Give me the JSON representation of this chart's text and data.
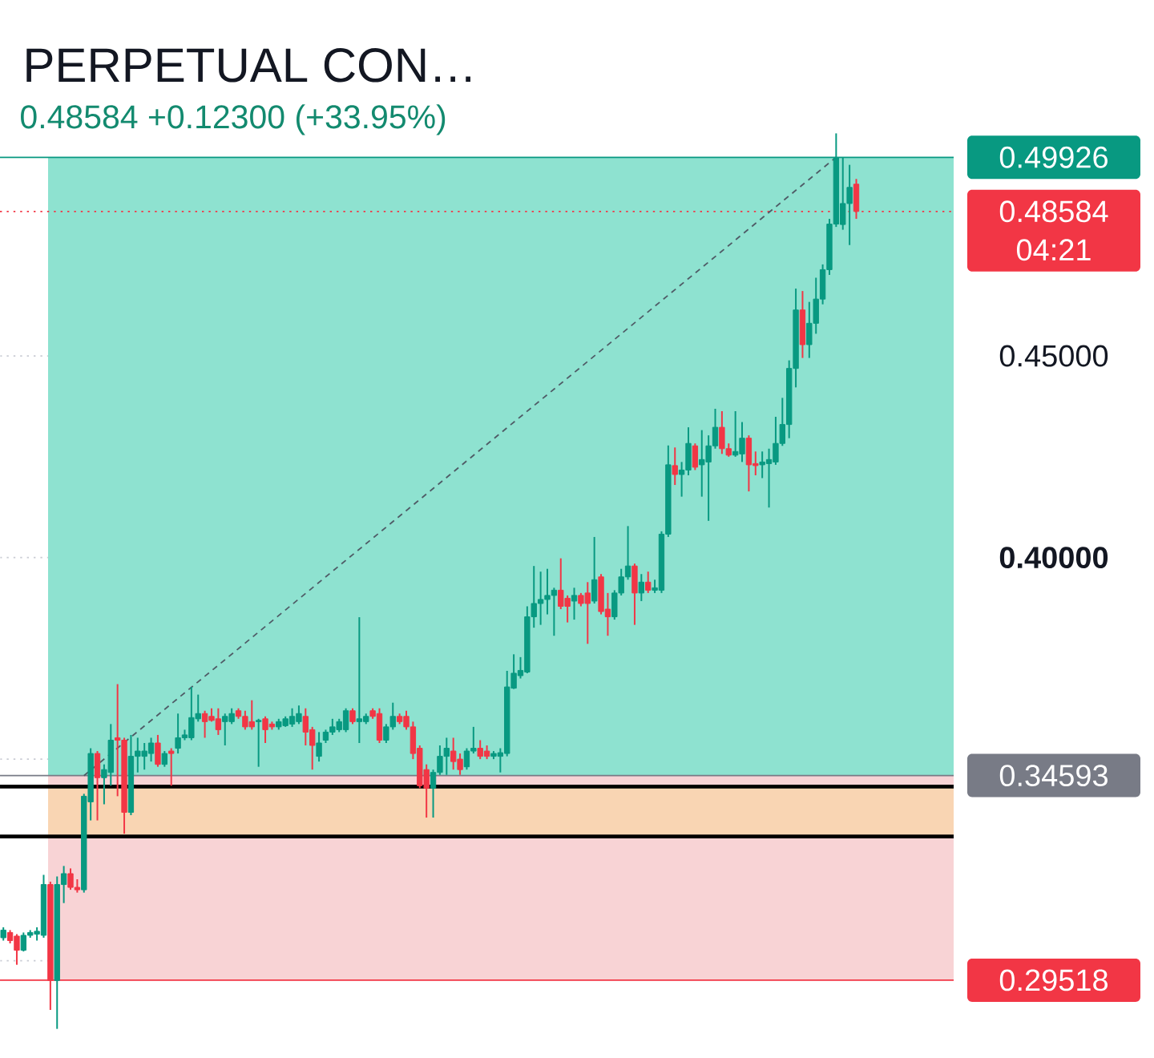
{
  "chart_data": {
    "type": "candlestick",
    "title": "PERPETUAL CON…",
    "subtitle": "0.48584 +0.12300 (+33.95%)",
    "categories": [
      null,
      null,
      null,
      null,
      null,
      null,
      null,
      null,
      null,
      null,
      null,
      null,
      null,
      null,
      null,
      null,
      null,
      null,
      null,
      null,
      null,
      null,
      null,
      null,
      null,
      null,
      null,
      null,
      null,
      null,
      null,
      null,
      null,
      null,
      null,
      null,
      null,
      null,
      null,
      null,
      null,
      null,
      null,
      null,
      null,
      null,
      null,
      null,
      null,
      null,
      null,
      null,
      null,
      null,
      null,
      null,
      null,
      null,
      null,
      null,
      null,
      null,
      null,
      null,
      null,
      null,
      null,
      null,
      null,
      null,
      null,
      null,
      null,
      null,
      null,
      null,
      null,
      null,
      null,
      null,
      null,
      null,
      null,
      null,
      null,
      null,
      null,
      null,
      null,
      null,
      null,
      null,
      null,
      null,
      null,
      null,
      null,
      null,
      null,
      null,
      null,
      null,
      null,
      null,
      null,
      null,
      null,
      null,
      null,
      null,
      null,
      null,
      null,
      null,
      null,
      null,
      null,
      null,
      null,
      null,
      null,
      null,
      null,
      null,
      null,
      null,
      null,
      null
    ],
    "ohlc": [
      [
        0.3057,
        0.3083,
        0.305,
        0.3076
      ],
      [
        0.307,
        0.3076,
        0.3043,
        0.305
      ],
      [
        0.3061,
        0.3066,
        0.299,
        0.3026
      ],
      [
        0.3026,
        0.307,
        0.3023,
        0.3063
      ],
      [
        0.3063,
        0.3076,
        0.3057,
        0.307
      ],
      [
        0.3066,
        0.3083,
        0.305,
        0.3073
      ],
      [
        0.3063,
        0.3213,
        0.3057,
        0.3189
      ],
      [
        0.3189,
        0.3196,
        0.2878,
        0.2951
      ],
      [
        0.2951,
        0.3209,
        0.2831,
        0.3189
      ],
      [
        0.3189,
        0.3235,
        0.3143,
        0.3216
      ],
      [
        0.3216,
        0.3229,
        0.3176,
        0.3182
      ],
      [
        0.3182,
        0.3202,
        0.3169,
        0.3176
      ],
      [
        0.3176,
        0.3414,
        0.3169,
        0.3408
      ],
      [
        0.3394,
        0.3527,
        0.3348,
        0.3514
      ],
      [
        0.3514,
        0.352,
        0.3348,
        0.3454
      ],
      [
        0.3454,
        0.3487,
        0.3388,
        0.3474
      ],
      [
        0.3467,
        0.3587,
        0.3434,
        0.3547
      ],
      [
        0.3553,
        0.3686,
        0.3408,
        0.3547
      ],
      [
        0.3547,
        0.3553,
        0.3315,
        0.3368
      ],
      [
        0.3368,
        0.356,
        0.3361,
        0.3507
      ],
      [
        0.3507,
        0.3553,
        0.3467,
        0.352
      ],
      [
        0.3507,
        0.354,
        0.3474,
        0.352
      ],
      [
        0.3514,
        0.3553,
        0.3494,
        0.354
      ],
      [
        0.354,
        0.356,
        0.3481,
        0.3487
      ],
      [
        0.3487,
        0.352,
        0.3481,
        0.3514
      ],
      [
        0.352,
        0.3527,
        0.3434,
        0.3514
      ],
      [
        0.3527,
        0.3613,
        0.3514,
        0.3553
      ],
      [
        0.3553,
        0.3573,
        0.3547,
        0.356
      ],
      [
        0.3553,
        0.3679,
        0.3547,
        0.3603
      ],
      [
        0.36,
        0.366,
        0.3593,
        0.3613
      ],
      [
        0.3613,
        0.362,
        0.3553,
        0.3593
      ],
      [
        0.3606,
        0.3626,
        0.3593,
        0.3596
      ],
      [
        0.36,
        0.3626,
        0.356,
        0.3573
      ],
      [
        0.3593,
        0.3613,
        0.3534,
        0.3606
      ],
      [
        0.3593,
        0.3626,
        0.3587,
        0.3613
      ],
      [
        0.362,
        0.3626,
        0.36,
        0.3606
      ],
      [
        0.3606,
        0.362,
        0.3573,
        0.358
      ],
      [
        0.3593,
        0.3646,
        0.3573,
        0.358
      ],
      [
        0.3593,
        0.36,
        0.3481,
        0.3596
      ],
      [
        0.36,
        0.3606,
        0.354,
        0.3573
      ],
      [
        0.3587,
        0.3593,
        0.3573,
        0.358
      ],
      [
        0.358,
        0.36,
        0.3573,
        0.3593
      ],
      [
        0.3583,
        0.3606,
        0.358,
        0.36
      ],
      [
        0.3587,
        0.3626,
        0.358,
        0.3606
      ],
      [
        0.3593,
        0.3633,
        0.3587,
        0.3613
      ],
      [
        0.3606,
        0.3626,
        0.3534,
        0.3567
      ],
      [
        0.3573,
        0.358,
        0.3474,
        0.3534
      ],
      [
        0.3507,
        0.3567,
        0.3494,
        0.354
      ],
      [
        0.3547,
        0.3573,
        0.354,
        0.3567
      ],
      [
        0.3567,
        0.36,
        0.356,
        0.358
      ],
      [
        0.3573,
        0.36,
        0.3567,
        0.3593
      ],
      [
        0.3573,
        0.3626,
        0.3567,
        0.362
      ],
      [
        0.362,
        0.3626,
        0.3587,
        0.3593
      ],
      [
        0.3593,
        0.3852,
        0.354,
        0.36
      ],
      [
        0.3593,
        0.3613,
        0.3587,
        0.3606
      ],
      [
        0.362,
        0.3626,
        0.36,
        0.3606
      ],
      [
        0.3613,
        0.3626,
        0.354,
        0.3547
      ],
      [
        0.3547,
        0.3587,
        0.354,
        0.358
      ],
      [
        0.358,
        0.364,
        0.3573,
        0.3606
      ],
      [
        0.3606,
        0.3613,
        0.3587,
        0.3593
      ],
      [
        0.3606,
        0.362,
        0.3573,
        0.358
      ],
      [
        0.358,
        0.3593,
        0.35,
        0.3514
      ],
      [
        0.3527,
        0.3534,
        0.3428,
        0.3434
      ],
      [
        0.3474,
        0.3487,
        0.3355,
        0.3428
      ],
      [
        0.3428,
        0.3474,
        0.3355,
        0.3467
      ],
      [
        0.3467,
        0.3534,
        0.3461,
        0.3507
      ],
      [
        0.3507,
        0.3553,
        0.3461,
        0.3527
      ],
      [
        0.352,
        0.3553,
        0.3474,
        0.3494
      ],
      [
        0.35,
        0.3514,
        0.3461,
        0.3474
      ],
      [
        0.3481,
        0.3527,
        0.3474,
        0.352
      ],
      [
        0.352,
        0.358,
        0.3514,
        0.3527
      ],
      [
        0.3527,
        0.3547,
        0.35,
        0.3507
      ],
      [
        0.352,
        0.3534,
        0.35,
        0.3507
      ],
      [
        0.3507,
        0.352,
        0.35,
        0.3514
      ],
      [
        0.3507,
        0.3527,
        0.3467,
        0.3516
      ],
      [
        0.3514,
        0.3719,
        0.3507,
        0.3679
      ],
      [
        0.3676,
        0.376,
        0.3674,
        0.3713
      ],
      [
        0.3707,
        0.3753,
        0.37,
        0.372
      ],
      [
        0.3716,
        0.3879,
        0.3713,
        0.3853
      ],
      [
        0.3853,
        0.3979,
        0.3826,
        0.3886
      ],
      [
        0.3886,
        0.3965,
        0.3833,
        0.3896
      ],
      [
        0.3896,
        0.3972,
        0.3859,
        0.3906
      ],
      [
        0.3906,
        0.3925,
        0.3806,
        0.3919
      ],
      [
        0.3919,
        0.3998,
        0.3872,
        0.3879
      ],
      [
        0.3899,
        0.3906,
        0.3839,
        0.3879
      ],
      [
        0.3892,
        0.3925,
        0.3846,
        0.3906
      ],
      [
        0.3906,
        0.3912,
        0.3879,
        0.3886
      ],
      [
        0.3912,
        0.3939,
        0.3786,
        0.3886
      ],
      [
        0.3892,
        0.4051,
        0.3886,
        0.3945
      ],
      [
        0.3952,
        0.3959,
        0.3859,
        0.3866
      ],
      [
        0.3872,
        0.3912,
        0.3806,
        0.3853
      ],
      [
        0.3853,
        0.3919,
        0.3846,
        0.3912
      ],
      [
        0.3912,
        0.3972,
        0.3906,
        0.3952
      ],
      [
        0.3952,
        0.4078,
        0.3945,
        0.3979
      ],
      [
        0.3979,
        0.3985,
        0.3833,
        0.3912
      ],
      [
        0.3912,
        0.3959,
        0.3892,
        0.3939
      ],
      [
        0.3939,
        0.3965,
        0.3912,
        0.3919
      ],
      [
        0.3919,
        0.3945,
        0.3912,
        0.3925
      ],
      [
        0.3919,
        0.4065,
        0.3912,
        0.4058
      ],
      [
        0.4058,
        0.4278,
        0.4051,
        0.423
      ],
      [
        0.4228,
        0.4273,
        0.418,
        0.4206
      ],
      [
        0.4206,
        0.4237,
        0.4151,
        0.4217
      ],
      [
        0.4217,
        0.4323,
        0.4204,
        0.4283
      ],
      [
        0.4277,
        0.4283,
        0.4217,
        0.4224
      ],
      [
        0.423,
        0.4316,
        0.4151,
        0.4243
      ],
      [
        0.4237,
        0.4303,
        0.4091,
        0.4277
      ],
      [
        0.4277,
        0.4369,
        0.427,
        0.4323
      ],
      [
        0.4323,
        0.4363,
        0.4257,
        0.427
      ],
      [
        0.427,
        0.4283,
        0.425,
        0.4254
      ],
      [
        0.4254,
        0.4363,
        0.425,
        0.4263
      ],
      [
        0.4257,
        0.4336,
        0.4237,
        0.4296
      ],
      [
        0.4296,
        0.4303,
        0.4164,
        0.423
      ],
      [
        0.4233,
        0.4263,
        0.4204,
        0.4228
      ],
      [
        0.423,
        0.4263,
        0.4197,
        0.4237
      ],
      [
        0.4233,
        0.427,
        0.4124,
        0.4243
      ],
      [
        0.4237,
        0.4349,
        0.423,
        0.4283
      ],
      [
        0.4283,
        0.4396,
        0.4277,
        0.433
      ],
      [
        0.433,
        0.4489,
        0.4296,
        0.4469
      ],
      [
        0.4469,
        0.4667,
        0.4422,
        0.4614
      ],
      [
        0.4614,
        0.4661,
        0.4495,
        0.4528
      ],
      [
        0.4528,
        0.4634,
        0.4495,
        0.4581
      ],
      [
        0.4581,
        0.4694,
        0.4555,
        0.4641
      ],
      [
        0.4641,
        0.4727,
        0.4628,
        0.4714
      ],
      [
        0.4714,
        0.484,
        0.4701,
        0.4827
      ],
      [
        0.4827,
        0.5052,
        0.482,
        0.4992
      ],
      [
        0.4826,
        0.4992,
        0.4813,
        0.4878
      ],
      [
        0.4878,
        0.4974,
        0.4775,
        0.4918
      ],
      [
        0.4926,
        0.4939,
        0.484,
        0.48584
      ]
    ],
    "series": [
      {
        "type": "line",
        "color": "#4f5b66",
        "line_style": "dashed",
        "values": [
          null,
          null,
          null,
          null,
          null,
          null,
          null,
          null,
          null,
          null,
          null,
          null,
          0.3459,
          null,
          null,
          null,
          null,
          null,
          null,
          null,
          null,
          null,
          null,
          null,
          null,
          null,
          null,
          null,
          null,
          null,
          null,
          null,
          null,
          null,
          null,
          null,
          null,
          null,
          null,
          null,
          null,
          null,
          null,
          null,
          null,
          null,
          null,
          null,
          null,
          null,
          null,
          null,
          null,
          null,
          null,
          null,
          null,
          null,
          null,
          null,
          null,
          null,
          null,
          null,
          null,
          null,
          null,
          null,
          null,
          null,
          null,
          null,
          null,
          null,
          null,
          null,
          null,
          null,
          null,
          null,
          null,
          null,
          null,
          null,
          null,
          null,
          null,
          null,
          null,
          null,
          null,
          null,
          null,
          null,
          null,
          null,
          null,
          null,
          null,
          null,
          null,
          null,
          null,
          null,
          null,
          null,
          null,
          null,
          null,
          null,
          null,
          null,
          null,
          null,
          null,
          null,
          null,
          null,
          null,
          null,
          null,
          null,
          null,
          null,
          0.4993,
          null,
          null,
          null
        ]
      }
    ],
    "ylim": [
      0.276,
      0.506
    ],
    "yticks": [
      {
        "value": 0.3,
        "label": null
      },
      {
        "value": 0.35,
        "label": null
      },
      {
        "value": 0.4,
        "label": "0.40000"
      },
      {
        "value": 0.45,
        "label": "0.45000"
      }
    ],
    "grid": "y",
    "tick_labels": "y",
    "bands": [
      {
        "axis": "y",
        "from": 0.34593,
        "to": 0.49926,
        "color": "#8ee2d0"
      },
      {
        "axis": "y",
        "from": 0.29518,
        "to": 0.34593,
        "color": "#f8d3d5"
      },
      {
        "axis": "y",
        "from": 0.3308,
        "to": 0.3432,
        "color": "#f9d5b3"
      }
    ],
    "ref_lines": [
      {
        "axis": "y",
        "value": 0.49926,
        "label": "0.49926",
        "color": "#089981"
      },
      {
        "axis": "y",
        "value": 0.48584,
        "label": "0.48584",
        "color": "#f23645",
        "line_style": "dotted"
      },
      {
        "axis": "y",
        "value": 0.34593,
        "label": "0.34593",
        "color": "#787b86"
      },
      {
        "axis": "y",
        "value": 0.29518,
        "label": "0.29518",
        "color": "#f23645"
      },
      {
        "axis": "y",
        "value": 0.3432,
        "color": "#000000"
      },
      {
        "axis": "y",
        "value": 0.3308,
        "color": "#000000"
      }
    ],
    "annotations": [
      "04:21"
    ]
  }
}
